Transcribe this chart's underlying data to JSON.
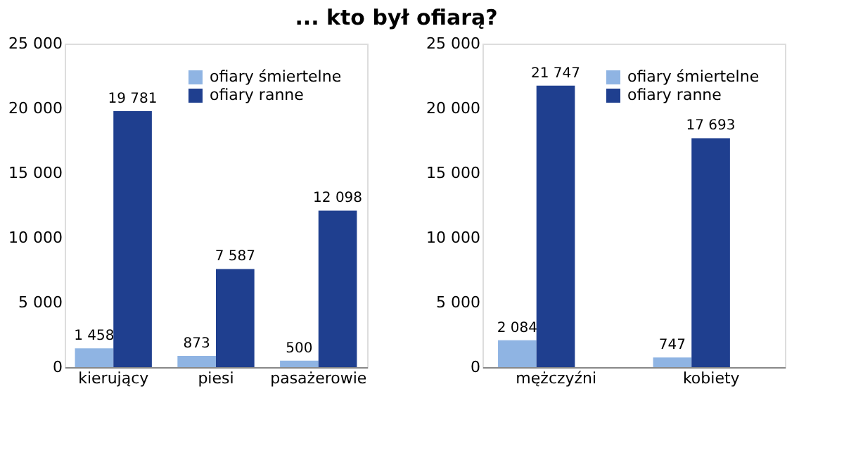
{
  "chart_data": [
    {
      "type": "bar",
      "title": "... kto był ofiarą?",
      "categories": [
        "kierujący",
        "piesi",
        "pasażerowie"
      ],
      "series": [
        {
          "name": "ofiary śmiertelne",
          "color": "#8fb4e3",
          "values": [
            1458,
            873,
            500
          ],
          "value_labels": [
            "1 458",
            "873",
            "500"
          ]
        },
        {
          "name": "ofiary ranne",
          "color": "#1f3f8f",
          "values": [
            19781,
            7587,
            12098
          ],
          "value_labels": [
            "19 781",
            "7 587",
            "12 098"
          ]
        }
      ],
      "ylim": [
        0,
        25000
      ],
      "yticks": [
        0,
        {
          "value": 5000,
          "label": "5 000"
        },
        {
          "value": 10000,
          "label": "10 000"
        },
        {
          "value": 15000,
          "label": "15 000"
        },
        {
          "value": 20000,
          "label": "20 000"
        },
        {
          "value": 25000,
          "label": "25 000"
        }
      ],
      "grid": false,
      "legend": "top right"
    },
    {
      "type": "bar",
      "categories": [
        "mężczyźni",
        "kobiety"
      ],
      "series": [
        {
          "name": "ofiary śmiertelne",
          "color": "#8fb4e3",
          "values": [
            2084,
            747
          ],
          "value_labels": [
            "2 084",
            "747"
          ]
        },
        {
          "name": "ofiary ranne",
          "color": "#1f3f8f",
          "values": [
            21747,
            17693
          ],
          "value_labels": [
            "21 747",
            "17 693"
          ]
        }
      ],
      "ylim": [
        0,
        25000
      ],
      "yticks": [
        0,
        {
          "value": 5000,
          "label": "5 000"
        },
        {
          "value": 10000,
          "label": "10 000"
        },
        {
          "value": 15000,
          "label": "15 000"
        },
        {
          "value": 20000,
          "label": "20 000"
        },
        {
          "value": 25000,
          "label": "25 000"
        }
      ],
      "grid": false,
      "legend": "top right"
    }
  ]
}
